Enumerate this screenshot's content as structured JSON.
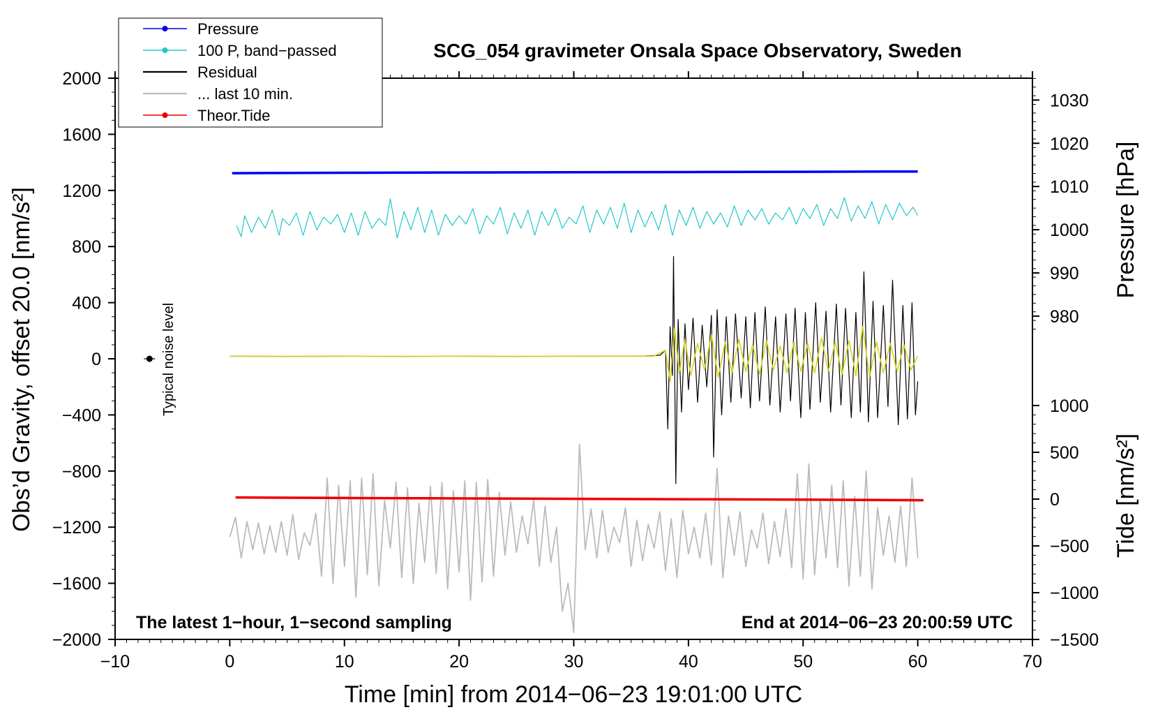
{
  "chart_data": {
    "type": "line",
    "title": "SCG_054 gravimeter Onsala Space Observatory, Sweden",
    "xlabel": "Time [min] from 2014−06−23 19:01:00 UTC",
    "ylabel": "Obs’d Gravity, offset 20.0 [nm/s²]",
    "ylabel_right_top": "Pressure [hPa]",
    "ylabel_right_bottom": "Tide [nm/s²]",
    "xlim": [
      -10,
      70
    ],
    "ylim": [
      -2000,
      2000
    ],
    "x_ticks": [
      -10,
      0,
      10,
      20,
      30,
      40,
      50,
      60,
      70
    ],
    "x_tick_labels": [
      "−10",
      "0",
      "10",
      "20",
      "30",
      "40",
      "50",
      "60",
      "70"
    ],
    "y_ticks": [
      2000,
      1600,
      1200,
      800,
      400,
      0,
      -400,
      -800,
      -1200,
      -1600,
      -2000
    ],
    "y_tick_labels": [
      "2000",
      "1600",
      "1200",
      "800",
      "400",
      "0",
      "−400",
      "−800",
      "−1200",
      "−1600",
      "−2000"
    ],
    "pressure_axis": {
      "ticks": [
        1030,
        1020,
        1010,
        1000,
        990,
        980
      ],
      "tick_labels": [
        "1030",
        "1020",
        "1010",
        "1000",
        "990",
        "980"
      ],
      "gravity_at_1000": 920,
      "gravity_per_hPa": 30.8
    },
    "tide_axis": {
      "ticks": [
        1000,
        500,
        0,
        -500,
        -1000,
        -1500
      ],
      "tick_labels": [
        "1000",
        "500",
        "0",
        "−500",
        "−1000",
        "−1500"
      ],
      "gravity_at_0": -1000,
      "gravity_per_unit": 0.667
    },
    "legend": {
      "position": "top-left",
      "entries": [
        {
          "label": "Pressure",
          "color": "#0000ee",
          "marker": true
        },
        {
          "label": "100 P, band−passed",
          "color": "#22c8c8",
          "marker": true
        },
        {
          "label": "Residual",
          "color": "#000000",
          "marker": false
        },
        {
          "label": "... last 10 min.",
          "color": "#bbbbbb",
          "marker": false
        },
        {
          "label": "Theor.Tide",
          "color": "#ee0000",
          "marker": true
        }
      ]
    },
    "annotations": {
      "left_bottom": "The latest 1−hour, 1−second sampling",
      "right_bottom": "End at 2014−06−23 20:00:59 UTC",
      "noise_label": "Typical noise level",
      "noise_x": -7,
      "noise_y": 0
    },
    "series": [
      {
        "name": "Pressure",
        "color": "#0000ee",
        "axis": "gravity",
        "x": [
          0.2,
          10,
          20,
          30,
          40,
          50,
          60
        ],
        "y": [
          1323,
          1326,
          1328,
          1330,
          1331,
          1333,
          1335
        ]
      },
      {
        "name": "100 P, band−passed",
        "color": "#22c8c8",
        "axis": "gravity",
        "x": [
          0.6,
          1.0,
          1.3,
          1.9,
          2.5,
          3.1,
          3.7,
          4.3,
          4.6,
          5.2,
          5.8,
          6.4,
          7.0,
          7.6,
          8.2,
          8.8,
          9.4,
          10.0,
          10.6,
          11.2,
          11.8,
          12.4,
          13.0,
          13.6,
          14.0,
          14.6,
          15.2,
          15.8,
          16.4,
          17.0,
          17.6,
          18.2,
          18.8,
          19.4,
          20.0,
          20.6,
          21.2,
          21.8,
          22.4,
          23.0,
          23.6,
          24.2,
          24.8,
          25.4,
          26.0,
          26.6,
          27.2,
          27.8,
          28.4,
          29.0,
          29.6,
          30.2,
          30.8,
          31.4,
          32.0,
          32.6,
          33.2,
          33.8,
          34.4,
          35.0,
          35.6,
          36.2,
          36.8,
          37.4,
          38.0,
          38.6,
          39.2,
          39.8,
          40.4,
          41.0,
          41.6,
          42.2,
          42.8,
          43.4,
          44.0,
          44.6,
          45.2,
          45.8,
          46.4,
          47.0,
          47.6,
          48.2,
          48.8,
          49.4,
          50.0,
          50.6,
          51.2,
          51.8,
          52.4,
          53.0,
          53.6,
          54.2,
          54.8,
          55.4,
          56.0,
          56.6,
          57.2,
          57.8,
          58.4,
          59.0,
          59.6,
          60.0
        ],
        "y": [
          950,
          870,
          1020,
          900,
          1010,
          930,
          1060,
          880,
          1000,
          950,
          1040,
          880,
          1050,
          920,
          1010,
          960,
          1030,
          900,
          1040,
          880,
          1050,
          930,
          1000,
          950,
          1140,
          860,
          1050,
          920,
          1080,
          900,
          1060,
          880,
          1030,
          950,
          1020,
          960,
          1070,
          890,
          1020,
          960,
          1080,
          890,
          1040,
          930,
          1060,
          880,
          1050,
          950,
          1070,
          930,
          1010,
          960,
          1090,
          900,
          1060,
          960,
          1080,
          930,
          1110,
          900,
          1060,
          940,
          1050,
          920,
          1100,
          880,
          1060,
          950,
          1080,
          930,
          1050,
          960,
          1040,
          940,
          1090,
          950,
          1060,
          990,
          1070,
          960,
          1040,
          990,
          1080,
          960,
          1070,
          1000,
          1100,
          950,
          1070,
          1000,
          1150,
          980,
          1090,
          1000,
          1120,
          960,
          1100,
          990,
          1110,
          1020,
          1080,
          1020
        ]
      },
      {
        "name": "Residual",
        "color": "#000000",
        "axis": "gravity",
        "x": [
          0.0,
          5,
          10,
          15,
          20,
          25,
          30,
          35,
          36.2,
          36.8,
          37.5,
          38.0,
          38.2,
          38.4,
          38.6,
          38.7,
          38.9,
          39.1,
          39.4,
          39.7,
          40.0,
          40.4,
          40.8,
          41.2,
          41.6,
          42.0,
          42.2,
          42.5,
          42.9,
          43.3,
          43.7,
          44.1,
          44.6,
          45.0,
          45.4,
          45.8,
          46.2,
          46.7,
          47.1,
          47.6,
          48.0,
          48.5,
          48.9,
          49.3,
          49.8,
          50.2,
          50.6,
          51.1,
          51.5,
          52.0,
          52.4,
          52.9,
          53.3,
          53.7,
          54.2,
          54.6,
          55.0,
          55.3,
          55.7,
          56.1,
          56.5,
          57.0,
          57.4,
          57.8,
          58.3,
          58.7,
          59.1,
          59.5,
          59.8,
          60.0
        ],
        "y": [
          18,
          17,
          18,
          17,
          18,
          17,
          18,
          19,
          20,
          22,
          25,
          60,
          -500,
          230,
          -120,
          730,
          -890,
          280,
          -380,
          250,
          -220,
          290,
          -310,
          240,
          -200,
          310,
          -700,
          350,
          -400,
          300,
          -310,
          320,
          -280,
          300,
          -350,
          330,
          -300,
          370,
          -330,
          300,
          -380,
          320,
          -300,
          360,
          -420,
          330,
          -360,
          400,
          -310,
          340,
          -380,
          390,
          -330,
          360,
          -420,
          330,
          -380,
          620,
          -450,
          410,
          -420,
          380,
          -340,
          560,
          -470,
          380,
          -430,
          400,
          -400,
          -160
        ]
      },
      {
        "name": "Residual, last 10 min. (overlay)",
        "color": "#d4d41a",
        "axis": "gravity",
        "x": [
          0.0,
          10,
          20,
          30,
          36,
          37,
          38.0,
          38.4,
          38.8,
          39.2,
          39.7,
          40.2,
          40.8,
          41.4,
          42.0,
          42.6,
          43.2,
          43.8,
          44.4,
          45.0,
          45.6,
          46.2,
          46.8,
          47.4,
          48.0,
          48.6,
          49.2,
          49.8,
          50.4,
          51.0,
          51.6,
          52.2,
          52.8,
          53.4,
          54.0,
          54.6,
          55.2,
          55.8,
          56.4,
          57.0,
          57.6,
          58.2,
          58.8,
          59.4,
          60.0
        ],
        "y": [
          18,
          18,
          18,
          18,
          18,
          20,
          60,
          -160,
          220,
          -100,
          140,
          -120,
          110,
          -80,
          170,
          -130,
          120,
          -100,
          140,
          -90,
          100,
          -110,
          130,
          -80,
          90,
          -100,
          120,
          -90,
          110,
          -100,
          150,
          -90,
          120,
          -110,
          130,
          -120,
          230,
          -130,
          120,
          -100,
          110,
          -90,
          100,
          -80,
          20
        ]
      },
      {
        "name": "... last 10 min.",
        "color": "#bbbbbb",
        "axis": "gravity",
        "x": [
          0.0,
          0.5,
          1.0,
          1.5,
          2.0,
          2.5,
          3.0,
          3.5,
          4.0,
          4.5,
          5.0,
          5.5,
          6.0,
          6.5,
          7.0,
          7.5,
          8.0,
          8.5,
          9.0,
          9.5,
          10.0,
          10.5,
          11.0,
          11.5,
          12.0,
          12.5,
          13.0,
          13.5,
          14.0,
          14.5,
          15.0,
          15.5,
          16.0,
          16.5,
          17.0,
          17.5,
          18.0,
          18.5,
          19.0,
          19.5,
          20.0,
          20.5,
          21.0,
          21.5,
          22.0,
          22.5,
          23.0,
          23.5,
          24.0,
          24.5,
          25.0,
          25.5,
          26.0,
          26.5,
          27.0,
          27.5,
          28.0,
          28.5,
          29.0,
          29.5,
          30.0,
          30.5,
          31.0,
          31.5,
          32.0,
          32.5,
          33.0,
          33.5,
          34.0,
          34.5,
          35.0,
          35.5,
          36.0,
          36.5,
          37.0,
          37.5,
          38.0,
          38.5,
          39.0,
          39.5,
          40.0,
          40.5,
          41.0,
          41.5,
          42.0,
          42.5,
          43.0,
          43.5,
          44.0,
          44.5,
          45.0,
          45.5,
          46.0,
          46.5,
          47.0,
          47.5,
          48.0,
          48.5,
          49.0,
          49.5,
          50.0,
          50.5,
          51.0,
          51.5,
          52.0,
          52.5,
          53.0,
          53.5,
          54.0,
          54.5,
          55.0,
          55.5,
          56.0,
          56.5,
          57.0,
          57.5,
          58.0,
          58.5,
          59.0,
          59.5,
          60.0
        ],
        "y": [
          -1270,
          -1130,
          -1420,
          -1160,
          -1360,
          -1170,
          -1390,
          -1190,
          -1380,
          -1160,
          -1400,
          -1110,
          -1430,
          -1240,
          -1330,
          -1100,
          -1550,
          -850,
          -1600,
          -900,
          -1480,
          -870,
          -1700,
          -850,
          -1540,
          -820,
          -1620,
          -1010,
          -1350,
          -880,
          -1560,
          -920,
          -1600,
          -1030,
          -1450,
          -910,
          -1530,
          -880,
          -1640,
          -940,
          -1520,
          -870,
          -1720,
          -880,
          -1590,
          -860,
          -1550,
          -950,
          -1400,
          -1020,
          -1380,
          -1120,
          -1320,
          -1010,
          -1480,
          -1050,
          -1450,
          -1200,
          -1800,
          -1600,
          -1950,
          -610,
          -1360,
          -1070,
          -1420,
          -1080,
          -1380,
          -1200,
          -1310,
          -1060,
          -1480,
          -1150,
          -1440,
          -1180,
          -1350,
          -1090,
          -1510,
          -1140,
          -1560,
          -1080,
          -1390,
          -1200,
          -1420,
          -1100,
          -1470,
          -780,
          -1560,
          -1120,
          -1400,
          -1090,
          -1480,
          -1220,
          -1350,
          -1100,
          -1460,
          -1160,
          -1410,
          -1070,
          -1490,
          -820,
          -1570,
          -750,
          -1540,
          -1000,
          -1420,
          -900,
          -1490,
          -870,
          -1620,
          -980,
          -1550,
          -800,
          -1640,
          -1060,
          -1400,
          -1120,
          -1450,
          -1050,
          -1480,
          -850,
          -1420
        ]
      },
      {
        "name": "Theor.Tide",
        "color": "#ee0000",
        "axis": "gravity",
        "x": [
          0.5,
          10,
          20,
          30,
          40,
          50,
          60.5
        ],
        "y": [
          -988,
          -992,
          -995,
          -998,
          -1001,
          -1004,
          -1008
        ]
      }
    ]
  }
}
